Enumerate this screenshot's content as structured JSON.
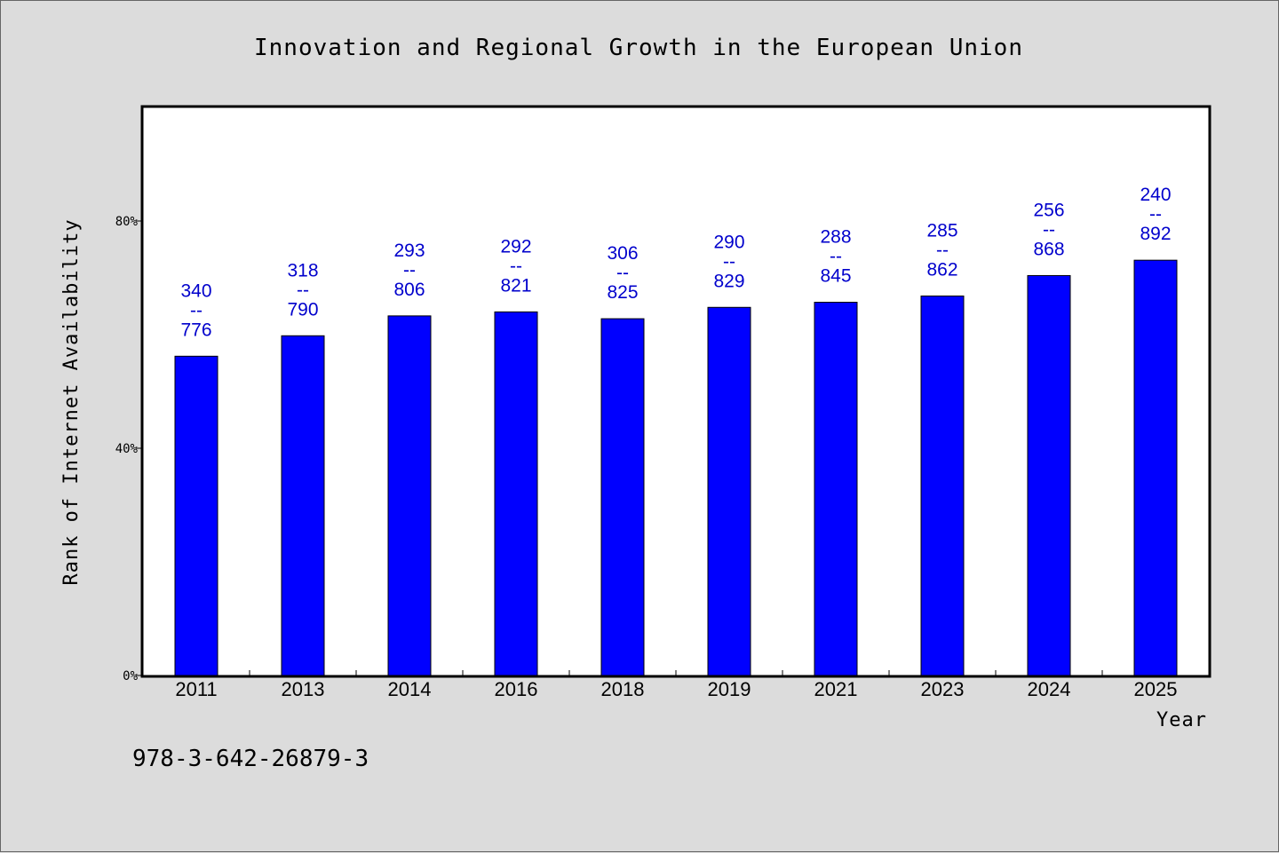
{
  "chart_data": {
    "type": "bar",
    "title": "Innovation and Regional Growth in the European Union",
    "xlabel": "Year",
    "ylabel": "Rank of Internet Availability",
    "categories": [
      "2011",
      "2013",
      "2014",
      "2016",
      "2018",
      "2019",
      "2021",
      "2023",
      "2024",
      "2025"
    ],
    "values": [
      56.2,
      59.8,
      63.3,
      64.0,
      62.8,
      64.8,
      65.7,
      66.8,
      70.4,
      73.1
    ],
    "data_labels": [
      [
        "340",
        "--",
        "776"
      ],
      [
        "318",
        "--",
        "790"
      ],
      [
        "293",
        "--",
        "806"
      ],
      [
        "292",
        "--",
        "821"
      ],
      [
        "306",
        "--",
        "825"
      ],
      [
        "290",
        "--",
        "829"
      ],
      [
        "288",
        "--",
        "845"
      ],
      [
        "285",
        "--",
        "862"
      ],
      [
        "256",
        "--",
        "868"
      ],
      [
        "240",
        "--",
        "892"
      ]
    ],
    "ylim": [
      0,
      100
    ],
    "yticks": [
      0,
      40,
      80
    ],
    "ytick_labels": [
      "0%",
      "40%",
      "80%"
    ],
    "bar_color": "#0000ff",
    "label_color": "#0000cc",
    "grid": false,
    "legend": "none"
  },
  "footnote": "978-3-642-26879-3"
}
